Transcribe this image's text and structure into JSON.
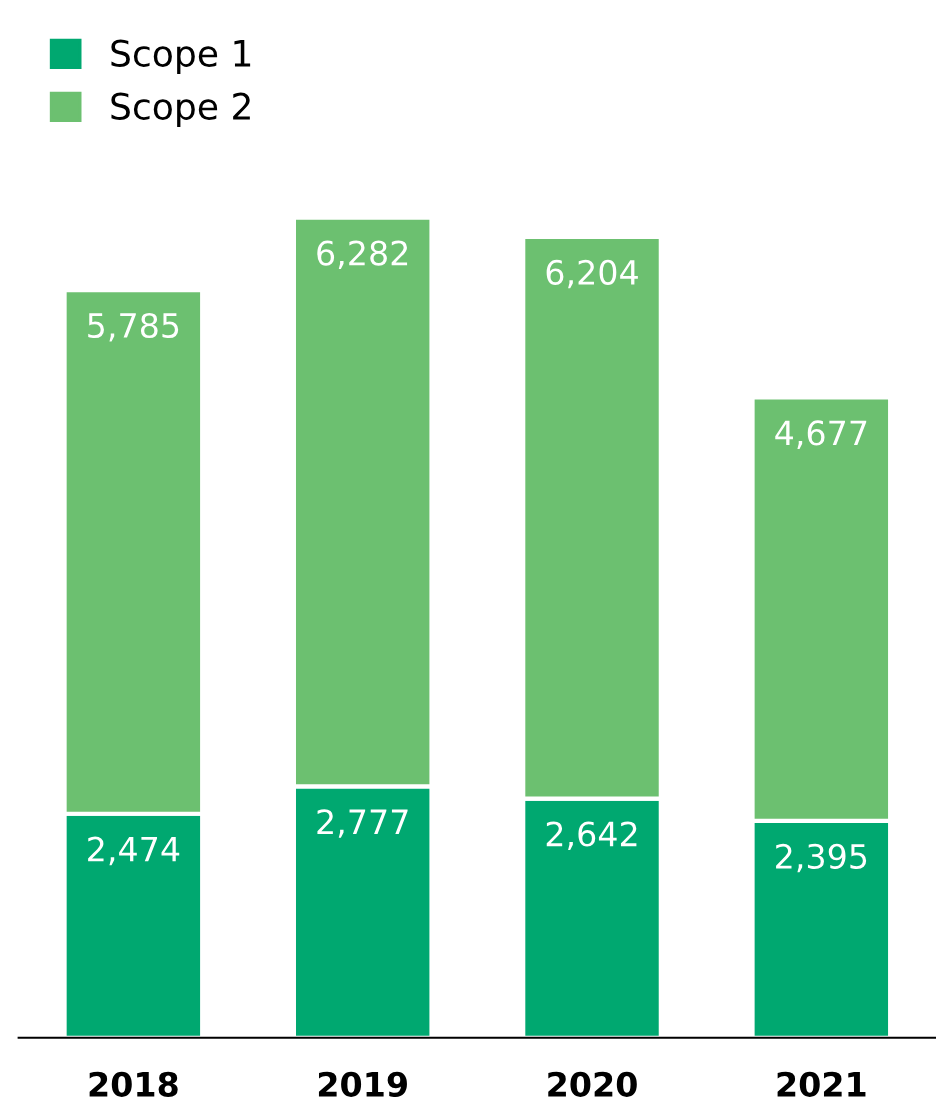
{
  "chart_data": {
    "type": "bar",
    "stacked": true,
    "categories": [
      "2018",
      "2019",
      "2020",
      "2021"
    ],
    "series": [
      {
        "name": "Scope 1",
        "color": "#00a870",
        "values": [
          2474,
          2777,
          2642,
          2395
        ],
        "value_labels": [
          "2,474",
          "2,777",
          "2,642",
          "2,395"
        ]
      },
      {
        "name": "Scope 2",
        "color": "#6cc070",
        "values": [
          5785,
          6282,
          6204,
          4677
        ],
        "value_labels": [
          "5,785",
          "6,282",
          "6,204",
          "4,677"
        ]
      }
    ],
    "legend": "top left",
    "grid": false
  }
}
